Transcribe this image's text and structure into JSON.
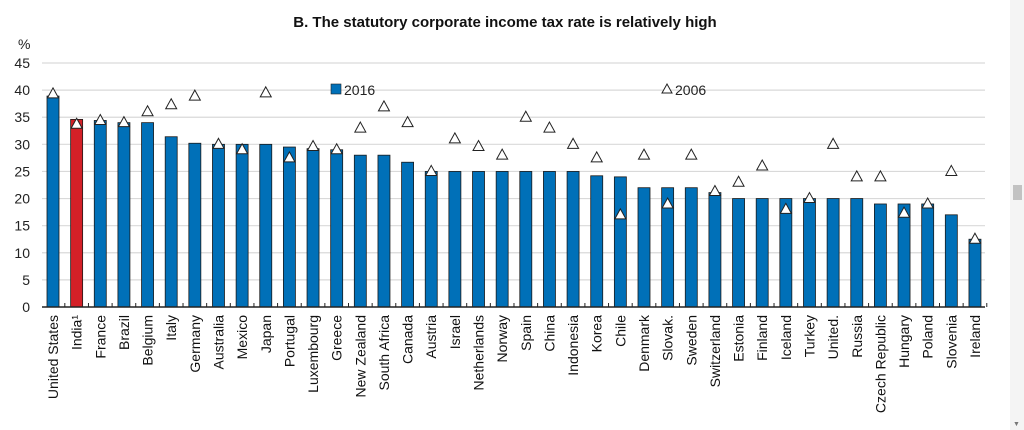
{
  "chart_data": {
    "type": "bar",
    "title": "B. The statutory corporate income tax rate is relatively high",
    "ylabel": "%",
    "ylim": [
      0,
      45
    ],
    "yticks": [
      0,
      5,
      10,
      15,
      20,
      25,
      30,
      35,
      40,
      45
    ],
    "grid": true,
    "legend_placement": "top",
    "categories": [
      "United States",
      "India¹",
      "France",
      "Brazil",
      "Belgium",
      "Italy",
      "Germany",
      "Australia",
      "Mexico",
      "Japan",
      "Portugal",
      "Luxembourg",
      "Greece",
      "New Zealand",
      "South Africa",
      "Canada",
      "Austria",
      "Israel",
      "Netherlands",
      "Norway",
      "Spain",
      "China",
      "Indonesia",
      "Korea",
      "Chile",
      "Denmark",
      "Slovak.",
      "Sweden",
      "Switzerland",
      "Estonia",
      "Finland",
      "Iceland",
      "Turkey",
      "United.",
      "Russia",
      "Czech Republic",
      "Hungary",
      "Poland",
      "Slovenia",
      "Ireland"
    ],
    "highlight_index": 1,
    "series": [
      {
        "name": "2016",
        "mark": "bar",
        "color": "#0070b8",
        "values": [
          38.9,
          34.6,
          34.4,
          34,
          34,
          31.4,
          30.2,
          30,
          30,
          30,
          29.5,
          29.2,
          29,
          28,
          28,
          26.7,
          25,
          25,
          25,
          25,
          25,
          25,
          25,
          24.2,
          24,
          22,
          22,
          22,
          21.1,
          20,
          20,
          20,
          20,
          20,
          20,
          19,
          19,
          19,
          17,
          12.5
        ]
      },
      {
        "name": "2006",
        "mark": "triangle",
        "color": "#ffffff",
        "values": [
          39.3,
          33.7,
          34.4,
          34,
          36,
          37.3,
          38.9,
          30,
          29,
          39.5,
          27.5,
          29.6,
          29,
          33,
          36.9,
          34,
          25,
          31,
          29.6,
          28,
          35,
          33,
          30,
          27.5,
          17,
          28,
          19,
          28,
          21.3,
          23,
          26,
          18,
          20,
          30,
          24,
          24,
          17.3,
          19,
          25,
          12.5
        ]
      }
    ],
    "highlight_color": "#d42027"
  }
}
